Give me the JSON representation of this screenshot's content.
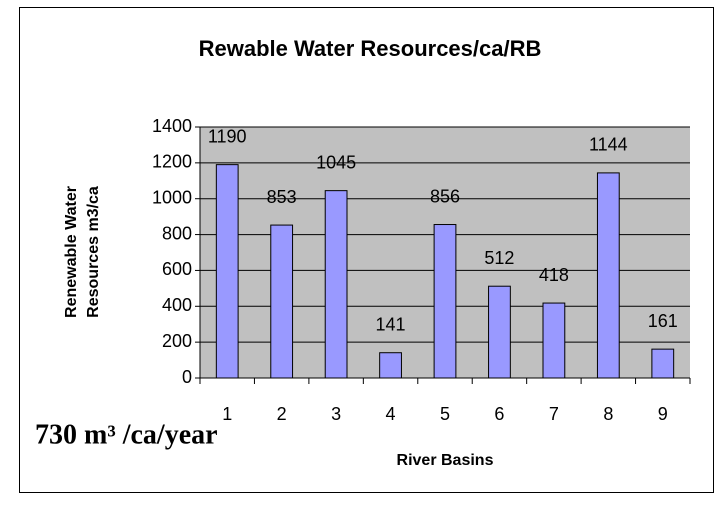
{
  "chart_data": {
    "type": "bar",
    "title": "Rewable Water Resources/ca/RB",
    "categories": [
      "1",
      "2",
      "3",
      "4",
      "5",
      "6",
      "7",
      "8",
      "9"
    ],
    "values": [
      1190,
      853,
      1045,
      141,
      856,
      512,
      418,
      1144,
      161
    ],
    "color": "#9999ff",
    "ylim": [
      0,
      1400
    ],
    "yticks": [
      0,
      200,
      400,
      600,
      800,
      1000,
      1200,
      1400
    ],
    "grid": true,
    "ylabel": [
      "Renewable Water",
      "Resources m3/ca"
    ],
    "xlabel": "River Basins",
    "annotation": "730 m³ /ca/year",
    "plot_background": "#c0c0c0"
  }
}
